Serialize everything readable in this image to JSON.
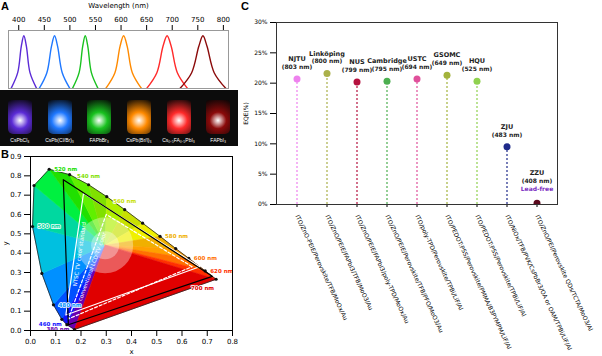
{
  "chart_data": [
    {
      "panel": "A",
      "type": "line",
      "x_label": "Wavelength (nm)",
      "xlim": [
        380,
        810
      ],
      "xticks": [
        400,
        450,
        500,
        550,
        600,
        650,
        700,
        750,
        800
      ],
      "ylim": [
        0,
        1.1
      ],
      "tick_labels": "x",
      "series": [
        {
          "name": "CsPbCl₃",
          "color": "#5b2bd6",
          "x": [
            385,
            398,
            405,
            410,
            415,
            422,
            435
          ],
          "values": [
            0,
            0.3,
            0.8,
            1,
            0.8,
            0.3,
            0
          ]
        },
        {
          "name": "CsPb(Cl/Br)₃",
          "color": "#1f78ff",
          "x": [
            440,
            455,
            464,
            470,
            476,
            485,
            500
          ],
          "values": [
            0,
            0.3,
            0.8,
            1,
            0.8,
            0.3,
            0
          ]
        },
        {
          "name": "FAPbBr₃",
          "color": "#19c21f",
          "x": [
            505,
            518,
            525,
            530,
            535,
            542,
            555
          ],
          "values": [
            0,
            0.3,
            0.8,
            1,
            0.8,
            0.3,
            0
          ]
        },
        {
          "name": "CsPb(Br/I)₃",
          "color": "#ff8a00",
          "x": [
            570,
            588,
            598,
            605,
            612,
            622,
            640
          ],
          "values": [
            0,
            0.3,
            0.8,
            1,
            0.8,
            0.3,
            0
          ]
        },
        {
          "name": "Cs₀.₅FA₀.₅PbI₃",
          "color": "#ff2a2a",
          "x": [
            650,
            670,
            682,
            690,
            698,
            710,
            730
          ],
          "values": [
            0,
            0.3,
            0.8,
            1,
            0.8,
            0.3,
            0
          ]
        },
        {
          "name": "FAPbI₃",
          "color": "#8b0a0a",
          "x": [
            715,
            738,
            752,
            760,
            768,
            782,
            805
          ],
          "values": [
            0,
            0.3,
            0.8,
            1,
            0.8,
            0.3,
            0
          ]
        }
      ]
    },
    {
      "panel": "B",
      "type": "chromaticity",
      "x_label": "x",
      "y_label": "y",
      "xlim": [
        0,
        0.8
      ],
      "xticks": [
        {
          "value": 0,
          "label": "0.0"
        },
        0.1,
        0.2,
        0.3,
        0.4,
        0.5,
        0.6,
        0.7,
        0.8
      ],
      "ylim": [
        0,
        0.9
      ],
      "yticks": [
        {
          "value": 0,
          "label": "0.0"
        },
        0.1,
        0.2,
        0.3,
        0.4,
        0.5,
        0.6,
        0.7,
        0.8,
        0.9
      ],
      "locus": [
        {
          "x": 0.174,
          "y": 0.005,
          "label": "380 nm",
          "color": "#6a00b0"
        },
        {
          "x": 0.144,
          "y": 0.03,
          "label": "460 nm",
          "color": "#1010ff"
        },
        {
          "x": 0.124,
          "y": 0.058,
          "label": null,
          "color": "#0050ff"
        },
        {
          "x": 0.091,
          "y": 0.133,
          "label": "480 nm",
          "color": "#0090ff"
        },
        {
          "x": 0.045,
          "y": 0.295,
          "label": null,
          "color": "#00c0e0"
        },
        {
          "x": 0.008,
          "y": 0.538,
          "label": "500 nm",
          "color": "#00d8a0"
        },
        {
          "x": 0.014,
          "y": 0.75,
          "label": null,
          "color": "#00f040"
        },
        {
          "x": 0.074,
          "y": 0.834,
          "label": "520 nm",
          "color": "#20e000"
        },
        {
          "x": 0.155,
          "y": 0.806,
          "label": null,
          "color": "#60f000"
        },
        {
          "x": 0.23,
          "y": 0.754,
          "label": "540 nm",
          "color": "#80e000"
        },
        {
          "x": 0.302,
          "y": 0.692,
          "label": null,
          "color": "#b0f000"
        },
        {
          "x": 0.373,
          "y": 0.625,
          "label": "560 nm",
          "color": "#c8e000"
        },
        {
          "x": 0.444,
          "y": 0.555,
          "label": null,
          "color": "#f0f000"
        },
        {
          "x": 0.513,
          "y": 0.487,
          "label": "580 nm",
          "color": "#f0b000"
        },
        {
          "x": 0.575,
          "y": 0.424,
          "label": null,
          "color": "#ffa000"
        },
        {
          "x": 0.627,
          "y": 0.373,
          "label": "600 nm",
          "color": "#ff7000"
        },
        {
          "x": 0.692,
          "y": 0.308,
          "label": "620 nm",
          "color": "#ff3000"
        },
        {
          "x": 0.735,
          "y": 0.265,
          "label": "700 nm",
          "color": "#e00000"
        }
      ],
      "gamuts": [
        {
          "name": "NTSC TV color standard",
          "color": "#ffffff",
          "line_style": "solid",
          "x": [
            0.67,
            0.21,
            0.14
          ],
          "y": [
            0.33,
            0.71,
            0.08
          ]
        },
        {
          "name": "conventional LCD TV color",
          "color": "#ffffff",
          "line_style": "dashed",
          "x": [
            0.64,
            0.3,
            0.15
          ],
          "y": [
            0.33,
            0.6,
            0.06
          ]
        },
        {
          "color": "#000000",
          "line_style": "solid",
          "x": [
            0.72,
            0.13,
            0.15
          ],
          "y": [
            0.28,
            0.78,
            0.03
          ]
        }
      ]
    },
    {
      "panel": "C",
      "type": "lollipop",
      "y_label": "EQE(%)",
      "ylim": [
        0,
        30
      ],
      "yticks": [
        {
          "value": 0,
          "label": "0%"
        },
        {
          "value": 5,
          "label": "5%"
        },
        {
          "value": 10,
          "label": "10%"
        },
        {
          "value": 15,
          "label": "15%"
        },
        {
          "value": 20,
          "label": "20%"
        },
        {
          "value": 25,
          "label": "25%"
        },
        {
          "value": 30,
          "label": "30%"
        }
      ],
      "categories": [
        "ITO/ZnO-PEIE/Perovskite/TFB/MoOx/Au",
        "ITO/ZnO/PEIE/FAPbI3/TFB/MoO3/Au",
        "ITO/ZnO/PEIE/FAPbI3/poly-TPD/MoOx/Au",
        "ITO/ZnO/PEIE/Perovskite/TFB/PFO/MoO3/Au",
        "ITO/poly-TPD/Perovskite/TPBi/LiF/Al",
        "ITO/PEDOT:PSS/Perovskite/PMMA/B3PYMPM/LiF/Al",
        "ITO/PEDOT:PSS/Perovskite/TPBi/LiF/Al",
        "ITO/NiOx/TFB/PVK/CsPbBr3/OA or OAM/TPBi/LiF/Al",
        "ITO/ZnO/PEI/Perovskite QDs/TCTA/MoO3/Al"
      ],
      "values": [
        20.7,
        21.6,
        20.2,
        20.3,
        20.7,
        21.3,
        20.3,
        9.5,
        0.2
      ],
      "colors": [
        "#ee82ee",
        "#aab04a",
        "#b5123e",
        "#4caf50",
        "#e0509b",
        "#a3b33c",
        "#8fd14f",
        "#1f2a8a",
        "#5b0a1e"
      ],
      "point_labels": [
        "NJTU",
        "Linköping",
        "NUS",
        "Cambridge",
        "USTC",
        "GSOMC",
        "HQU",
        "ZJU",
        "ZZU"
      ],
      "wavelength_labels": [
        "(803 nm)",
        "(800 nm)",
        "(799 nm)",
        "(795 nm)",
        "(694 nm)",
        "(649 nm)",
        "(525 nm)",
        "(483 nm)",
        "(408 nm)"
      ],
      "annotations": [
        {
          "index": 8,
          "text": "Lead-free",
          "color": "#7b2cbf"
        }
      ],
      "line_style": "dashed",
      "marker": "circle"
    }
  ]
}
